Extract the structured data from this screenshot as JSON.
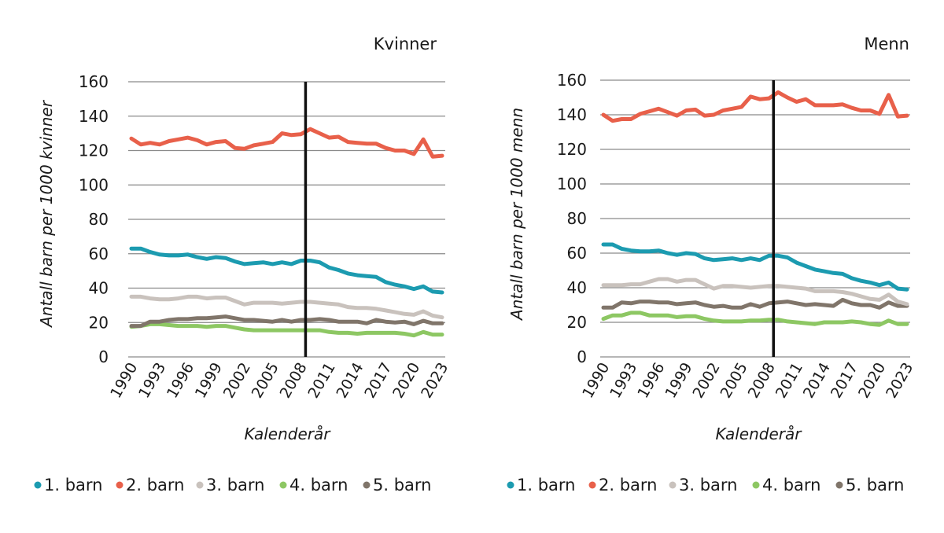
{
  "colors": {
    "1. barn": "#1c9bb0",
    "2. barn": "#e8604a",
    "3. barn": "#c9c2bd",
    "4. barn": "#8dc763",
    "5. barn": "#80756a"
  },
  "chart_data": [
    {
      "type": "line",
      "title": "Kvinner",
      "xlabel": "Kalenderår",
      "ylabel": "Antall barn per 1000 kvinner",
      "ylim": [
        0,
        160
      ],
      "yticks": [
        0,
        20,
        40,
        60,
        80,
        100,
        120,
        140,
        160
      ],
      "grid": true,
      "legend_position": "bottom",
      "xtick_labels": [
        "1990",
        "1993",
        "1996",
        "1999",
        "2002",
        "2005",
        "2008",
        "2011",
        "2014",
        "2017",
        "2020",
        "2023"
      ],
      "x": [
        1990,
        1991,
        1992,
        1993,
        1994,
        1995,
        1996,
        1997,
        1998,
        1999,
        2000,
        2001,
        2002,
        2003,
        2004,
        2005,
        2006,
        2007,
        2008,
        2009,
        2010,
        2011,
        2012,
        2013,
        2014,
        2015,
        2016,
        2017,
        2018,
        2019,
        2020,
        2021,
        2022,
        2023
      ],
      "reference_line_x": 2009,
      "series": [
        {
          "name": "1. barn",
          "values": [
            63,
            63,
            61,
            59.5,
            59,
            59,
            59.5,
            58,
            57,
            58,
            57.5,
            55.5,
            54,
            54.5,
            55,
            54,
            55,
            54,
            56,
            56,
            55,
            52,
            50.5,
            48.5,
            47.5,
            47,
            46.5,
            43.5,
            42,
            41,
            39.5,
            41,
            38,
            37.5
          ]
        },
        {
          "name": "2. barn",
          "values": [
            127,
            123.5,
            124.5,
            123.5,
            125.5,
            126.5,
            127.5,
            126,
            123.5,
            125,
            125.5,
            121.5,
            121,
            123,
            124,
            125,
            130,
            129,
            129.5,
            132.5,
            130,
            127.5,
            128,
            125,
            124.5,
            124,
            124,
            121.5,
            120,
            120,
            118,
            126.5,
            116.5,
            117
          ]
        },
        {
          "name": "3. barn",
          "values": [
            35,
            35,
            34,
            33.5,
            33.5,
            34,
            35,
            35,
            34,
            34.5,
            34.5,
            32.5,
            30.5,
            31.5,
            31.5,
            31.5,
            31,
            31.5,
            32,
            32,
            31.5,
            31,
            30.5,
            29,
            28.5,
            28.5,
            28,
            27,
            26,
            25,
            24.5,
            26.5,
            24,
            23
          ]
        },
        {
          "name": "4. barn",
          "values": [
            17.5,
            18,
            19,
            19,
            18.5,
            18,
            18,
            18,
            17.5,
            18,
            18,
            17,
            16,
            15.5,
            15.5,
            15.5,
            15.5,
            15.5,
            15.5,
            15.5,
            15.5,
            14.5,
            14,
            14,
            13.5,
            14,
            14,
            14,
            14,
            13.5,
            12.5,
            14.5,
            13,
            13
          ]
        },
        {
          "name": "5. barn",
          "values": [
            18,
            18,
            20.5,
            20.5,
            21.5,
            22,
            22,
            22.5,
            22.5,
            23,
            23.5,
            22.5,
            21.5,
            21.5,
            21,
            20.5,
            21.5,
            20.5,
            21.5,
            21.5,
            22,
            21.5,
            20.5,
            20.5,
            20.5,
            19.5,
            21.5,
            20.5,
            20,
            20.5,
            19,
            21,
            19.5,
            19.5
          ]
        }
      ]
    },
    {
      "type": "line",
      "title": "Menn",
      "xlabel": "Kalenderår",
      "ylabel": "Antall barn per 1000 menn",
      "ylim": [
        0,
        160
      ],
      "yticks": [
        0,
        20,
        40,
        60,
        80,
        100,
        120,
        140,
        160
      ],
      "grid": true,
      "legend_position": "bottom",
      "xtick_labels": [
        "1990",
        "1993",
        "1996",
        "1999",
        "2002",
        "2005",
        "2008",
        "2011",
        "2014",
        "2017",
        "2020",
        "2023"
      ],
      "x": [
        1990,
        1991,
        1992,
        1993,
        1994,
        1995,
        1996,
        1997,
        1998,
        1999,
        2000,
        2001,
        2002,
        2003,
        2004,
        2005,
        2006,
        2007,
        2008,
        2009,
        2010,
        2011,
        2012,
        2013,
        2014,
        2015,
        2016,
        2017,
        2018,
        2019,
        2020,
        2021,
        2022,
        2023
      ],
      "reference_line_x": 2009,
      "series": [
        {
          "name": "1. barn",
          "values": [
            65,
            65,
            62.5,
            61.5,
            61,
            61,
            61.5,
            60,
            59,
            60,
            59.5,
            57,
            56,
            56.5,
            57,
            56,
            57,
            56,
            58.5,
            58.5,
            57.5,
            54.5,
            52.5,
            50.5,
            49.5,
            48.5,
            48,
            45.5,
            44,
            43,
            41.5,
            43,
            39.5,
            39
          ]
        },
        {
          "name": "2. barn",
          "values": [
            140,
            136.5,
            137.5,
            137.5,
            140.5,
            142,
            143.5,
            141.5,
            139.5,
            142.5,
            143,
            139.5,
            140,
            142.5,
            143.5,
            144.5,
            150.5,
            149,
            149.5,
            153,
            150,
            147.5,
            149,
            145.5,
            145.5,
            145.5,
            146,
            144,
            142.5,
            142.5,
            140.5,
            151.5,
            139,
            139.5
          ]
        },
        {
          "name": "3. barn",
          "values": [
            41.5,
            41.5,
            41.5,
            42,
            42,
            43.5,
            45,
            45,
            43.5,
            44.5,
            44.5,
            42,
            39.5,
            41,
            41,
            40.5,
            40,
            40.5,
            41,
            41,
            40.5,
            40,
            39.5,
            38,
            38,
            38,
            37.5,
            36.5,
            35,
            33.5,
            33,
            36,
            32,
            30.5
          ]
        },
        {
          "name": "4. barn",
          "values": [
            22,
            24,
            24,
            25.5,
            25.5,
            24,
            24,
            24,
            23,
            23.5,
            23.5,
            22,
            21,
            20.5,
            20.5,
            20.5,
            21,
            21,
            21.5,
            21.5,
            20.5,
            20,
            19.5,
            19,
            20,
            20,
            20,
            20.5,
            20,
            19,
            18.5,
            21,
            19,
            19
          ]
        },
        {
          "name": "5. barn",
          "values": [
            28.5,
            28.5,
            31.5,
            31,
            32,
            32,
            31.5,
            31.5,
            30.5,
            31,
            31.5,
            30,
            29,
            29.5,
            28.5,
            28.5,
            30.5,
            29,
            31,
            31.5,
            32,
            31,
            30,
            30.5,
            30,
            29.5,
            33,
            31,
            30,
            30,
            28.5,
            31.5,
            29.5,
            29.5
          ]
        }
      ]
    }
  ],
  "legend": [
    "1. barn",
    "2. barn",
    "3. barn",
    "4. barn",
    "5. barn"
  ]
}
